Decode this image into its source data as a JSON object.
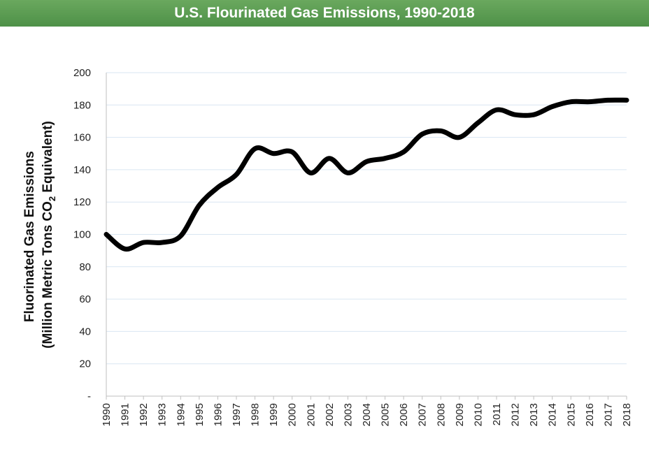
{
  "header": {
    "title": "U.S. Flourinated Gas Emissions, 1990-2018"
  },
  "colors": {
    "title_bar": "#5a9c50",
    "line": "#000000",
    "grid": "#d9e6f2"
  },
  "chart_data": {
    "type": "line",
    "title": "U.S. Flourinated Gas Emissions, 1990-2018",
    "ylabel_line1": "Fluorinated Gas Emissions",
    "ylabel_line2_pre": "(Million Metric Tons CO",
    "ylabel_line2_sub": "2",
    "ylabel_line2_post": " Equivalent)",
    "xlabel": "",
    "ylim": [
      0,
      200
    ],
    "y_ticks": [
      "-",
      "20",
      "40",
      "60",
      "80",
      "100",
      "120",
      "140",
      "160",
      "180",
      "200"
    ],
    "grid": true,
    "legend": "none",
    "x": [
      1990,
      1991,
      1992,
      1993,
      1994,
      1995,
      1996,
      1997,
      1998,
      1999,
      2000,
      2001,
      2002,
      2003,
      2004,
      2005,
      2006,
      2007,
      2008,
      2009,
      2010,
      2011,
      2012,
      2013,
      2014,
      2015,
      2016,
      2017,
      2018
    ],
    "values": [
      100,
      91,
      95,
      95,
      99,
      118,
      129,
      137,
      153,
      150,
      151,
      138,
      147,
      138,
      145,
      147,
      151,
      162,
      164,
      160,
      169,
      177,
      174,
      174,
      179,
      182,
      182,
      183,
      183
    ]
  }
}
